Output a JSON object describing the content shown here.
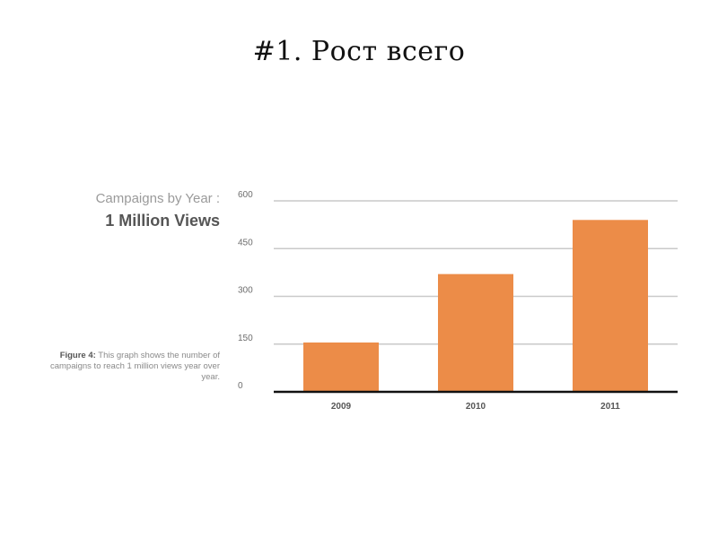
{
  "slide": {
    "title": "#1. Рост всего"
  },
  "caption": {
    "line1": "Campaigns by Year :",
    "line2": "1 Million Views",
    "figure_label": "Figure 4:",
    "figure_text": "This graph shows the number of campaigns to reach 1 million views year over year."
  },
  "chart_data": {
    "type": "bar",
    "categories": [
      "2009",
      "2010",
      "2011"
    ],
    "values": [
      155,
      370,
      540
    ],
    "ylim": [
      0,
      600
    ],
    "yticks": [
      0,
      150,
      300,
      450,
      600
    ],
    "title": "",
    "xlabel": "",
    "ylabel": "",
    "grid": true,
    "bar_color": "#ec8c48"
  }
}
